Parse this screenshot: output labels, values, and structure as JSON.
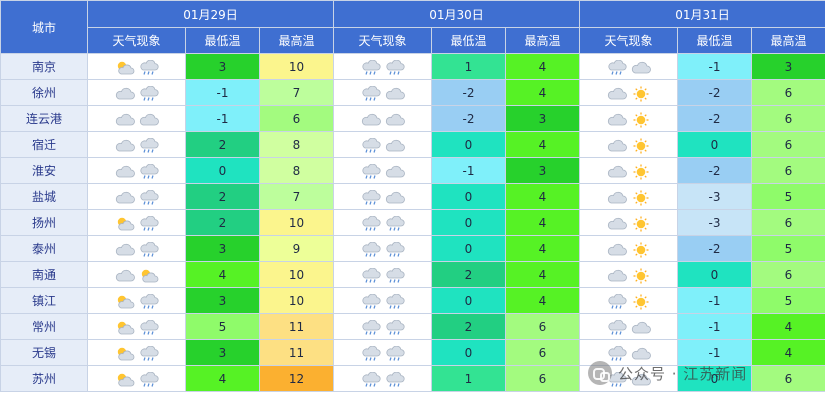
{
  "header": {
    "city_label": "城市",
    "days": [
      "01月29日",
      "01月30日",
      "01月31日"
    ],
    "sub_cols": [
      "天气现象",
      "最低温",
      "最高温"
    ]
  },
  "legend_colors": {
    "-3": "#c7e4f7",
    "-2": "#99cef3",
    "-1": "#7ff0fa",
    "0": "#1fe3c0",
    "1": "#33e393",
    "2": "#22cf82",
    "3": "#27d12c",
    "4": "#56f225",
    "5": "#8ffb6a",
    "6": "#a3fb7f",
    "7": "#bdfe9c",
    "8": "#d0ffa0",
    "9": "#edff98",
    "10": "#fbf58d",
    "11": "#fde083",
    "12": "#fbb030"
  },
  "rows": [
    {
      "city": "南京",
      "d": [
        {
          "icons": [
            "sun-cloud-icon",
            "rain-cloud-icon"
          ],
          "lo": "3",
          "hi": "10"
        },
        {
          "icons": [
            "rain-cloud-icon",
            "rain-cloud-icon"
          ],
          "lo": "1",
          "hi": "4"
        },
        {
          "icons": [
            "rain-cloud-icon",
            "cloudy-icon"
          ],
          "lo": "-1",
          "hi": "3"
        }
      ]
    },
    {
      "city": "徐州",
      "d": [
        {
          "icons": [
            "cloudy-icon",
            "rain-cloud-icon"
          ],
          "lo": "-1",
          "hi": "7"
        },
        {
          "icons": [
            "rain-cloud-icon",
            "cloudy-icon"
          ],
          "lo": "-2",
          "hi": "4"
        },
        {
          "icons": [
            "cloudy-icon",
            "sun-icon"
          ],
          "lo": "-2",
          "hi": "6"
        }
      ]
    },
    {
      "city": "连云港",
      "d": [
        {
          "icons": [
            "cloudy-icon",
            "cloudy-icon"
          ],
          "lo": "-1",
          "hi": "6"
        },
        {
          "icons": [
            "cloudy-icon",
            "cloudy-icon"
          ],
          "lo": "-2",
          "hi": "3"
        },
        {
          "icons": [
            "cloudy-icon",
            "sun-icon"
          ],
          "lo": "-2",
          "hi": "6"
        }
      ]
    },
    {
      "city": "宿迁",
      "d": [
        {
          "icons": [
            "cloudy-icon",
            "rain-cloud-icon"
          ],
          "lo": "2",
          "hi": "8"
        },
        {
          "icons": [
            "rain-cloud-icon",
            "cloudy-icon"
          ],
          "lo": "0",
          "hi": "4"
        },
        {
          "icons": [
            "cloudy-icon",
            "sun-icon"
          ],
          "lo": "0",
          "hi": "6"
        }
      ]
    },
    {
      "city": "淮安",
      "d": [
        {
          "icons": [
            "cloudy-icon",
            "rain-cloud-icon"
          ],
          "lo": "0",
          "hi": "8"
        },
        {
          "icons": [
            "rain-cloud-icon",
            "cloudy-icon"
          ],
          "lo": "-1",
          "hi": "3"
        },
        {
          "icons": [
            "cloudy-icon",
            "sun-icon"
          ],
          "lo": "-2",
          "hi": "6"
        }
      ]
    },
    {
      "city": "盐城",
      "d": [
        {
          "icons": [
            "cloudy-icon",
            "rain-cloud-icon"
          ],
          "lo": "2",
          "hi": "7"
        },
        {
          "icons": [
            "rain-cloud-icon",
            "cloudy-icon"
          ],
          "lo": "0",
          "hi": "4"
        },
        {
          "icons": [
            "cloudy-icon",
            "sun-icon"
          ],
          "lo": "-3",
          "hi": "5"
        }
      ]
    },
    {
      "city": "扬州",
      "d": [
        {
          "icons": [
            "sun-cloud-icon",
            "rain-cloud-icon"
          ],
          "lo": "2",
          "hi": "10"
        },
        {
          "icons": [
            "rain-cloud-icon",
            "rain-cloud-icon"
          ],
          "lo": "0",
          "hi": "4"
        },
        {
          "icons": [
            "cloudy-icon",
            "sun-icon"
          ],
          "lo": "-3",
          "hi": "6"
        }
      ]
    },
    {
      "city": "泰州",
      "d": [
        {
          "icons": [
            "cloudy-icon",
            "rain-cloud-icon"
          ],
          "lo": "3",
          "hi": "9"
        },
        {
          "icons": [
            "rain-cloud-icon",
            "rain-cloud-icon"
          ],
          "lo": "0",
          "hi": "4"
        },
        {
          "icons": [
            "cloudy-icon",
            "sun-icon"
          ],
          "lo": "-2",
          "hi": "5"
        }
      ]
    },
    {
      "city": "南通",
      "d": [
        {
          "icons": [
            "cloudy-icon",
            "sun-cloud-icon"
          ],
          "lo": "4",
          "hi": "10"
        },
        {
          "icons": [
            "rain-cloud-icon",
            "rain-cloud-icon"
          ],
          "lo": "2",
          "hi": "4"
        },
        {
          "icons": [
            "cloudy-icon",
            "sun-icon"
          ],
          "lo": "0",
          "hi": "6"
        }
      ]
    },
    {
      "city": "镇江",
      "d": [
        {
          "icons": [
            "sun-cloud-icon",
            "rain-cloud-icon"
          ],
          "lo": "3",
          "hi": "10"
        },
        {
          "icons": [
            "rain-cloud-icon",
            "rain-cloud-icon"
          ],
          "lo": "0",
          "hi": "4"
        },
        {
          "icons": [
            "rain-cloud-icon",
            "sun-icon"
          ],
          "lo": "-1",
          "hi": "5"
        }
      ]
    },
    {
      "city": "常州",
      "d": [
        {
          "icons": [
            "sun-cloud-icon",
            "rain-cloud-icon"
          ],
          "lo": "5",
          "hi": "11"
        },
        {
          "icons": [
            "rain-cloud-icon",
            "rain-cloud-icon"
          ],
          "lo": "2",
          "hi": "6"
        },
        {
          "icons": [
            "rain-cloud-icon",
            "cloudy-icon"
          ],
          "lo": "-1",
          "hi": "4"
        }
      ]
    },
    {
      "city": "无锡",
      "d": [
        {
          "icons": [
            "sun-cloud-icon",
            "rain-cloud-icon"
          ],
          "lo": "3",
          "hi": "11"
        },
        {
          "icons": [
            "rain-cloud-icon",
            "rain-cloud-icon"
          ],
          "lo": "0",
          "hi": "6"
        },
        {
          "icons": [
            "rain-cloud-icon",
            "cloudy-icon"
          ],
          "lo": "-1",
          "hi": "4"
        }
      ]
    },
    {
      "city": "苏州",
      "d": [
        {
          "icons": [
            "sun-cloud-icon",
            "rain-cloud-icon"
          ],
          "lo": "4",
          "hi": "12"
        },
        {
          "icons": [
            "rain-cloud-icon",
            "rain-cloud-icon"
          ],
          "lo": "1",
          "hi": "6"
        },
        {
          "icons": [
            "rain-cloud-icon",
            "cloudy-icon"
          ],
          "lo": "0",
          "hi": "6"
        }
      ]
    }
  ],
  "watermark": {
    "text": "公众号 · 江苏新闻"
  }
}
